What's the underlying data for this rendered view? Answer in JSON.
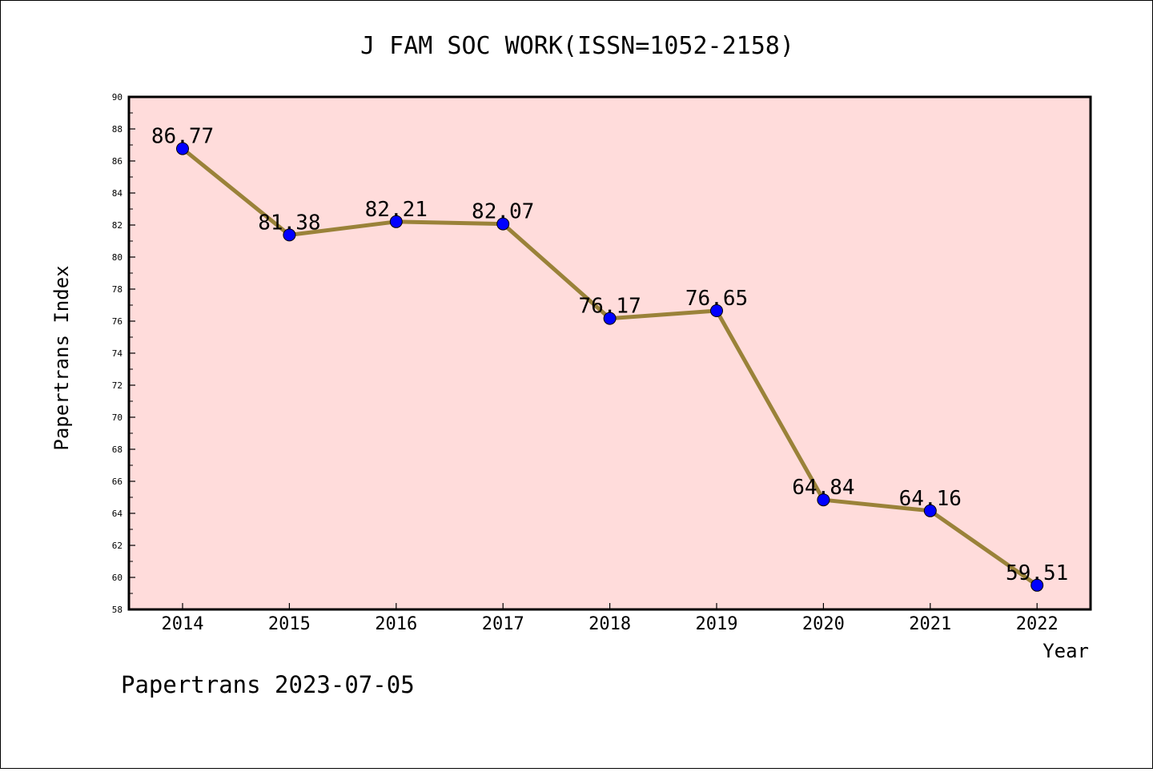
{
  "chart_data": {
    "type": "line",
    "title": "J FAM SOC WORK(ISSN=1052-2158)",
    "xlabel": "Year",
    "ylabel": "Papertrans Index",
    "ylim": [
      58,
      90
    ],
    "ytick_step": 2,
    "grid": false,
    "x": [
      "2014",
      "2015",
      "2016",
      "2017",
      "2018",
      "2019",
      "2020",
      "2021",
      "2022"
    ],
    "series": [
      {
        "values": [
          86.77,
          81.38,
          82.21,
          82.07,
          76.17,
          76.65,
          64.84,
          64.16,
          59.51
        ],
        "labels": [
          "86.77",
          "81.38",
          "82.21",
          "82.07",
          "76.17",
          "76.65",
          "64.84",
          "64.16",
          "59.51"
        ]
      }
    ],
    "colors": {
      "plot_background": "#ffdcdb",
      "line": "#9a8239",
      "marker": "#0000ff"
    }
  },
  "footer": {
    "text": "Papertrans 2023-07-05"
  }
}
